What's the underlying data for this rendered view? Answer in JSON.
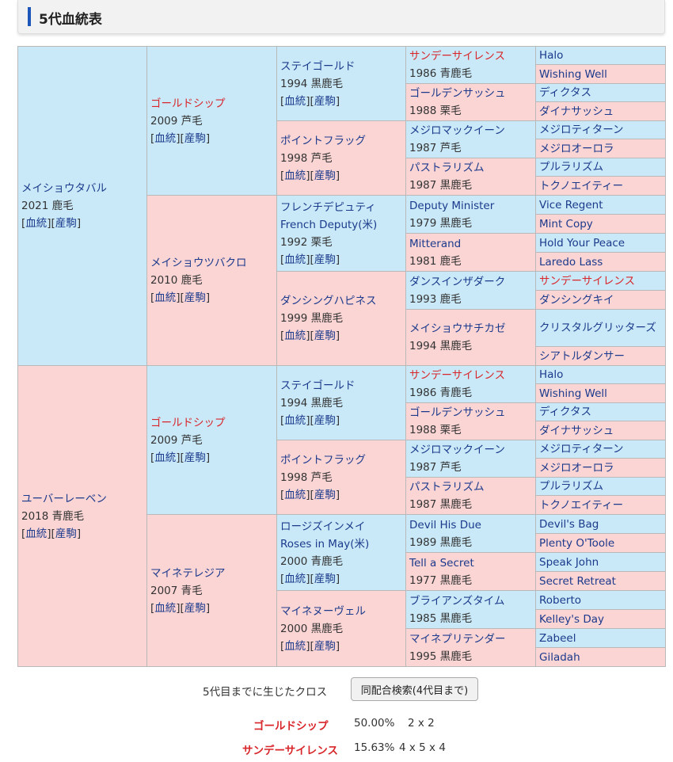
{
  "header": {
    "title": "5代血統表"
  },
  "links": {
    "pedigree": "血統",
    "offspring": "産駒"
  },
  "horse": {
    "name": "メイショウタバル",
    "info": "2021 鹿毛"
  },
  "g1": [
    {
      "name": "ゴールドシップ",
      "info": "2009 芦毛"
    },
    {
      "name": "メイショウツバクロ",
      "info": "2010 鹿毛"
    },
    {
      "name": "ゴールドシップ",
      "info": "2009 芦毛"
    },
    {
      "name": "マイネテレジア",
      "info": "2007 青毛"
    }
  ],
  "g2": [
    {
      "name": "ステイゴールド",
      "info": "1994 黒鹿毛"
    },
    {
      "name": "ポイントフラッグ",
      "info": "1998 芦毛"
    },
    {
      "name": "フレンチデピュティ",
      "name2": "French Deputy(米)",
      "info": "1992 栗毛"
    },
    {
      "name": "ダンシングハピネス",
      "info": "1999 黒鹿毛"
    },
    {
      "name": "ステイゴールド",
      "info": "1994 黒鹿毛"
    },
    {
      "name": "ポイントフラッグ",
      "info": "1998 芦毛"
    },
    {
      "name": "ロージズインメイ",
      "name2": "Roses in May(米)",
      "info": "2000 青鹿毛"
    },
    {
      "name": "マイネヌーヴェル",
      "info": "2000 黒鹿毛"
    }
  ],
  "g3": [
    {
      "name": "サンデーサイレンス",
      "info": "1986 青鹿毛"
    },
    {
      "name": "ゴールデンサッシュ",
      "info": "1988 栗毛"
    },
    {
      "name": "メジロマックイーン",
      "info": "1987 芦毛"
    },
    {
      "name": "パストラリズム",
      "info": "1987 黒鹿毛"
    },
    {
      "name": "Deputy Minister",
      "info": "1979 黒鹿毛"
    },
    {
      "name": "Mitterand",
      "info": "1981 鹿毛"
    },
    {
      "name": "ダンスインザダーク",
      "info": "1993 鹿毛"
    },
    {
      "name": "メイショウサチカゼ",
      "info": "1994 黒鹿毛"
    },
    {
      "name": "サンデーサイレンス",
      "info": "1986 青鹿毛"
    },
    {
      "name": "ゴールデンサッシュ",
      "info": "1988 栗毛"
    },
    {
      "name": "メジロマックイーン",
      "info": "1987 芦毛"
    },
    {
      "name": "パストラリズム",
      "info": "1987 黒鹿毛"
    },
    {
      "name": "Devil His Due",
      "info": "1989 黒鹿毛"
    },
    {
      "name": "Tell a Secret",
      "info": "1977 黒鹿毛"
    },
    {
      "name": "ブライアンズタイム",
      "info": "1985 黒鹿毛"
    },
    {
      "name": "マイネプリテンダー",
      "info": "1995 黒鹿毛"
    }
  ],
  "g4": [
    "Halo",
    "Wishing Well",
    "ディクタス",
    "ダイナサッシュ",
    "メジロティターン",
    "メジロオーロラ",
    "プルラリズム",
    "トクノエイティー",
    "Vice Regent",
    "Mint Copy",
    "Hold Your Peace",
    "Laredo Lass",
    "サンデーサイレンス",
    "ダンシングキイ",
    "クリスタルグリッターズ",
    "シアトルダンサー",
    "Halo",
    "Wishing Well",
    "ディクタス",
    "ダイナサッシュ",
    "メジロティターン",
    "メジロオーロラ",
    "プルラリズム",
    "トクノエイティー",
    "Devil's Bag",
    "Plenty O'Toole",
    "Speak John",
    "Secret Retreat",
    "Roberto",
    "Kelley's Day",
    "Zabeel",
    "Giladah"
  ],
  "g2b": {
    "name": "ユーバーレーベン",
    "info": "2018 青鹿毛"
  },
  "cross": {
    "label": "5代目までに生じたクロス",
    "button": "同配合検索(4代目まで)",
    "rows": [
      {
        "name": "ゴールドシップ",
        "pct": "50.00%",
        "pattern": "2 x 2"
      },
      {
        "name": "サンデーサイレンス",
        "pct": "15.63%",
        "pattern": "4 x 5 x 4"
      }
    ]
  },
  "colors": {
    "male_bg": "#c9e9f8",
    "female_bg": "#fbd4d4",
    "cross_name": "#d8262b",
    "link": "#1b3a8c",
    "accent_bar": "#1b56b8"
  }
}
